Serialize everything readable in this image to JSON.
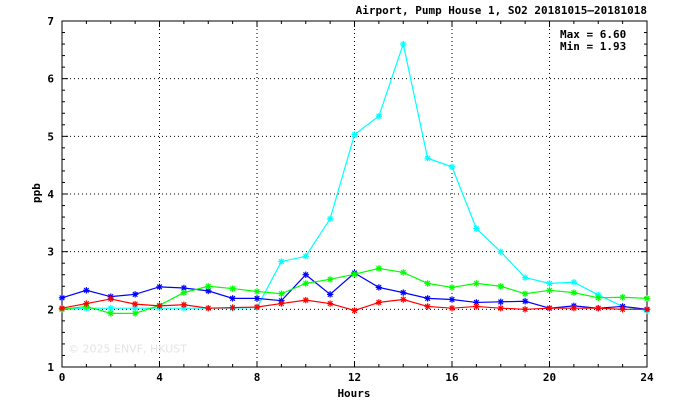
{
  "chart_data": {
    "type": "line",
    "title": "Airport, Pump House 1, SO2 20181015–20181018",
    "xlabel": "Hours",
    "ylabel": "ppb",
    "xlim": [
      0,
      24
    ],
    "ylim": [
      1,
      7
    ],
    "xticks": [
      0,
      4,
      8,
      12,
      16,
      20,
      24
    ],
    "yticks": [
      1,
      2,
      3,
      4,
      5,
      6,
      7
    ],
    "grid": true,
    "stats": {
      "max_label": "Max = 6.60",
      "min_label": "Min = 1.93"
    },
    "watermark": "© 2025  ENVF, HKUST",
    "x": [
      0,
      1,
      2,
      3,
      4,
      5,
      6,
      7,
      8,
      9,
      10,
      11,
      12,
      13,
      14,
      15,
      16,
      17,
      18,
      19,
      20,
      21,
      22,
      23,
      24
    ],
    "series": [
      {
        "color": "#00ffff",
        "values": [
          2.0,
          2.02,
          2.02,
          2.02,
          2.02,
          2.02,
          2.02,
          2.02,
          2.03,
          2.83,
          2.92,
          3.57,
          5.03,
          5.35,
          6.6,
          4.62,
          4.47,
          3.4,
          3.0,
          2.55,
          2.45,
          2.47,
          2.25,
          2.05,
          1.98
        ]
      },
      {
        "color": "#0000ff",
        "values": [
          2.2,
          2.33,
          2.22,
          2.26,
          2.39,
          2.37,
          2.32,
          2.19,
          2.19,
          2.15,
          2.6,
          2.26,
          2.63,
          2.38,
          2.29,
          2.19,
          2.17,
          2.12,
          2.13,
          2.14,
          2.02,
          2.06,
          2.02,
          2.05,
          2.0
        ]
      },
      {
        "color": "#00ff00",
        "values": [
          2.0,
          2.05,
          1.93,
          1.93,
          2.07,
          2.29,
          2.4,
          2.36,
          2.31,
          2.27,
          2.45,
          2.52,
          2.61,
          2.71,
          2.64,
          2.45,
          2.38,
          2.45,
          2.4,
          2.27,
          2.33,
          2.29,
          2.2,
          2.21,
          2.19
        ]
      },
      {
        "color": "#ff0000",
        "values": [
          2.02,
          2.1,
          2.18,
          2.09,
          2.06,
          2.08,
          2.02,
          2.03,
          2.04,
          2.1,
          2.16,
          2.1,
          1.98,
          2.12,
          2.17,
          2.05,
          2.02,
          2.05,
          2.02,
          2.0,
          2.02,
          2.02,
          2.02,
          2.0,
          2.0
        ]
      }
    ]
  }
}
